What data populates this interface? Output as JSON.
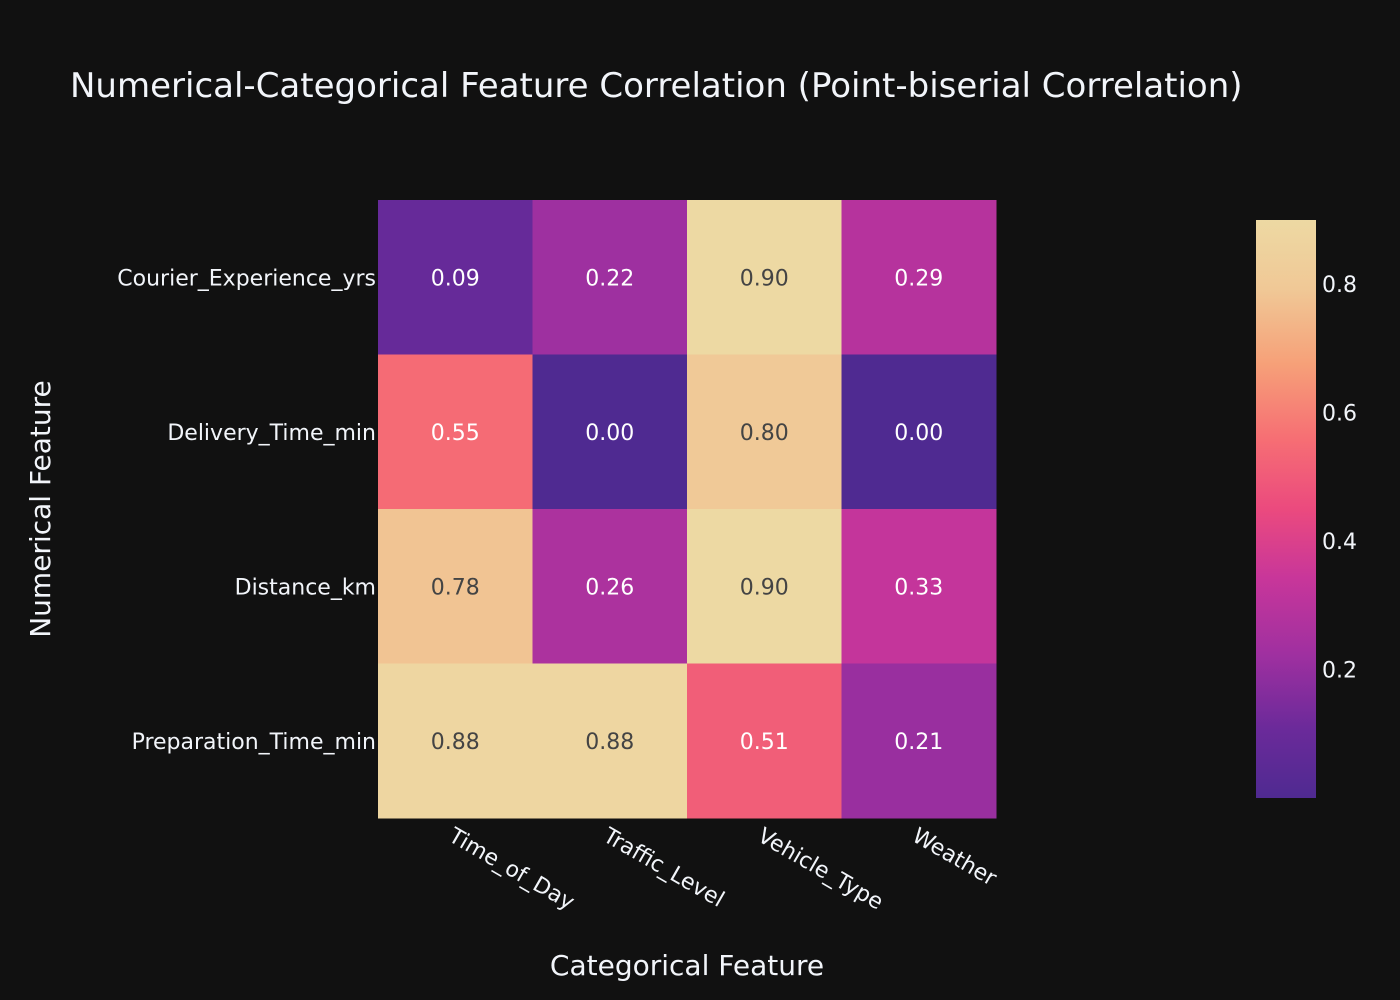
{
  "chart_data": {
    "type": "heatmap",
    "title": "Numerical-Categorical Feature Correlation (Point-biserial Correlation)",
    "xlabel": "Categorical Feature",
    "ylabel": "Numerical Feature",
    "x_categories": [
      "Time_of_Day",
      "Traffic_Level",
      "Vehicle_Type",
      "Weather"
    ],
    "y_categories": [
      "Courier_Experience_yrs",
      "Delivery_Time_min",
      "Distance_km",
      "Preparation_Time_min"
    ],
    "values": [
      [
        0.09,
        0.22,
        0.9,
        0.29
      ],
      [
        0.55,
        0.0,
        0.8,
        0.0
      ],
      [
        0.78,
        0.26,
        0.9,
        0.33
      ],
      [
        0.88,
        0.88,
        0.51,
        0.21
      ]
    ],
    "value_labels": [
      [
        "0.09",
        "0.22",
        "0.90",
        "0.29"
      ],
      [
        "0.55",
        "0.00",
        "0.80",
        "0.00"
      ],
      [
        "0.78",
        "0.26",
        "0.90",
        "0.33"
      ],
      [
        "0.88",
        "0.88",
        "0.51",
        "0.21"
      ]
    ],
    "colorscale": "plasma-magenta",
    "color_range": [
      0.0,
      0.9
    ],
    "colorbar_ticks": [
      0.2,
      0.4,
      0.6,
      0.8
    ],
    "colorbar_tick_labels": [
      "0.2",
      "0.4",
      "0.6",
      "0.8"
    ],
    "background_color": "#111111"
  }
}
